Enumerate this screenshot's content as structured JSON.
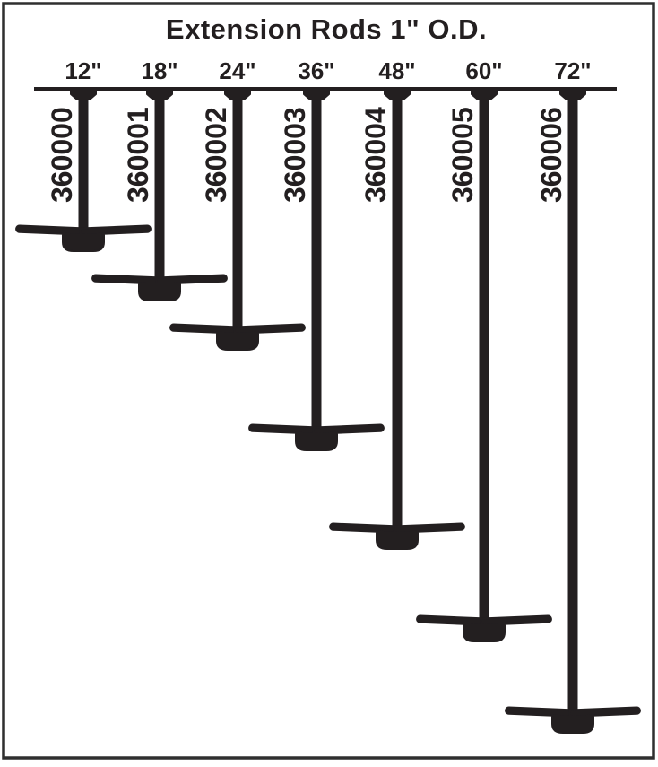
{
  "figure": {
    "title": "Extension Rods 1\" O.D."
  },
  "rods": [
    {
      "size_label": "12\"",
      "part_number": "360000",
      "length_in": 12
    },
    {
      "size_label": "18\"",
      "part_number": "360001",
      "length_in": 18
    },
    {
      "size_label": "24\"",
      "part_number": "360002",
      "length_in": 24
    },
    {
      "size_label": "36\"",
      "part_number": "360003",
      "length_in": 36
    },
    {
      "size_label": "48\"",
      "part_number": "360004",
      "length_in": 48
    },
    {
      "size_label": "60\"",
      "part_number": "360005",
      "length_in": 60
    },
    {
      "size_label": "72\"",
      "part_number": "360006",
      "length_in": 72
    }
  ],
  "colors": {
    "ink": "#231f20",
    "background": "#ffffff",
    "frame": "#2f2f2f"
  }
}
